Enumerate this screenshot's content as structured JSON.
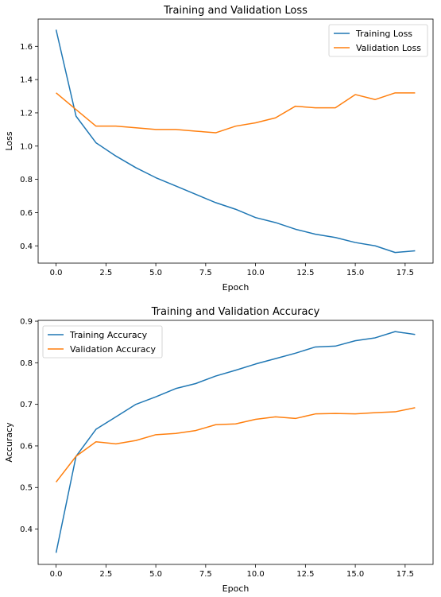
{
  "chart_data": [
    {
      "type": "line",
      "title": "Training and Validation Loss",
      "xlabel": "Epoch",
      "ylabel": "Loss",
      "xlim": [
        -0.9,
        18.9
      ],
      "ylim": [
        0.296,
        1.764
      ],
      "xticks": [
        0,
        2.5,
        5,
        7.5,
        10,
        12.5,
        15,
        17.5
      ],
      "xtick_labels": [
        "0.0",
        "2.5",
        "5.0",
        "7.5",
        "10.0",
        "12.5",
        "15.0",
        "17.5"
      ],
      "yticks": [
        0.4,
        0.6,
        0.8,
        1.0,
        1.2,
        1.4,
        1.6
      ],
      "ytick_labels": [
        "0.4",
        "0.6",
        "0.8",
        "1.0",
        "1.2",
        "1.4",
        "1.6"
      ],
      "grid": false,
      "legend": "top-right",
      "x": [
        0,
        1,
        2,
        3,
        4,
        5,
        6,
        7,
        8,
        9,
        10,
        11,
        12,
        13,
        14,
        15,
        16,
        17,
        18
      ],
      "series": [
        {
          "name": "Training Loss",
          "color": "#1f77b4",
          "values": [
            1.7,
            1.18,
            1.02,
            0.94,
            0.87,
            0.81,
            0.76,
            0.71,
            0.66,
            0.62,
            0.57,
            0.54,
            0.5,
            0.47,
            0.45,
            0.42,
            0.4,
            0.36,
            0.37
          ]
        },
        {
          "name": "Validation Loss",
          "color": "#ff7f0e",
          "values": [
            1.32,
            1.22,
            1.12,
            1.12,
            1.11,
            1.1,
            1.1,
            1.09,
            1.08,
            1.12,
            1.14,
            1.17,
            1.24,
            1.23,
            1.23,
            1.31,
            1.28,
            1.32,
            1.32
          ]
        }
      ]
    },
    {
      "type": "line",
      "title": "Training and Validation Accuracy",
      "xlabel": "Epoch",
      "ylabel": "Accuracy",
      "xlim": [
        -0.9,
        18.9
      ],
      "ylim": [
        0.315,
        0.902
      ],
      "xticks": [
        0,
        2.5,
        5,
        7.5,
        10,
        12.5,
        15,
        17.5
      ],
      "xtick_labels": [
        "0.0",
        "2.5",
        "5.0",
        "7.5",
        "10.0",
        "12.5",
        "15.0",
        "17.5"
      ],
      "yticks": [
        0.4,
        0.5,
        0.6,
        0.7,
        0.8,
        0.9
      ],
      "ytick_labels": [
        "0.4",
        "0.5",
        "0.6",
        "0.7",
        "0.8",
        "0.9"
      ],
      "grid": false,
      "legend": "top-left",
      "x": [
        0,
        1,
        2,
        3,
        4,
        5,
        6,
        7,
        8,
        9,
        10,
        11,
        12,
        13,
        14,
        15,
        16,
        17,
        18
      ],
      "series": [
        {
          "name": "Training Accuracy",
          "color": "#1f77b4",
          "values": [
            0.343,
            0.575,
            0.64,
            0.67,
            0.7,
            0.718,
            0.738,
            0.75,
            0.768,
            0.782,
            0.797,
            0.81,
            0.823,
            0.838,
            0.84,
            0.853,
            0.86,
            0.875,
            0.868
          ]
        },
        {
          "name": "Validation Accuracy",
          "color": "#ff7f0e",
          "values": [
            0.513,
            0.575,
            0.61,
            0.605,
            0.613,
            0.627,
            0.63,
            0.637,
            0.651,
            0.653,
            0.664,
            0.67,
            0.666,
            0.677,
            0.678,
            0.677,
            0.68,
            0.682,
            0.692
          ]
        }
      ]
    }
  ]
}
